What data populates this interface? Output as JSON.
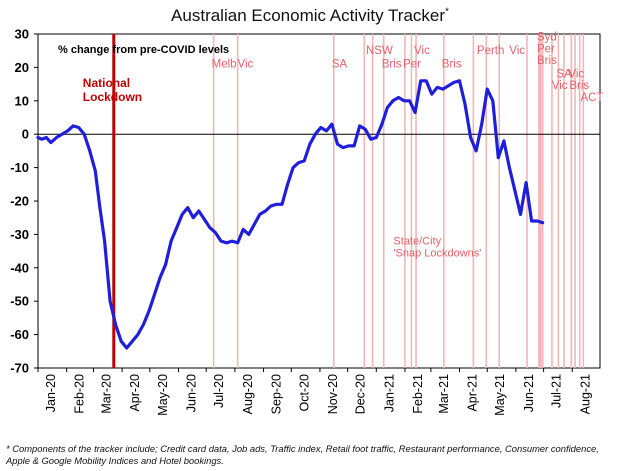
{
  "chart_data": {
    "type": "line",
    "title": "Australian Economic Activity Tracker",
    "title_marker": "*",
    "ylabel": "% change from pre-COVID levels",
    "ylim": [
      -70,
      30
    ],
    "yticks": [
      30,
      20,
      10,
      0,
      -10,
      -20,
      -30,
      -40,
      -50,
      -60,
      -70
    ],
    "xlim": [
      "2020-01-01",
      "2021-08-31"
    ],
    "xtick_labels": [
      "Jan-20",
      "Feb-20",
      "Mar-20",
      "Apr-20",
      "May-20",
      "Jun-20",
      "Jul-20",
      "Aug-20",
      "Sep-20",
      "Oct-20",
      "Nov-20",
      "Dec-20",
      "Jan-21",
      "Feb-21",
      "Mar-21",
      "Apr-21",
      "May-21",
      "Jun-21",
      "Jul-21",
      "Aug-21"
    ],
    "xtick_dates": [
      "2020-01-01",
      "2020-02-01",
      "2020-03-01",
      "2020-04-01",
      "2020-05-01",
      "2020-06-01",
      "2020-07-01",
      "2020-08-01",
      "2020-09-01",
      "2020-10-01",
      "2020-11-01",
      "2020-12-01",
      "2021-01-01",
      "2021-02-01",
      "2021-03-01",
      "2021-04-01",
      "2021-05-01",
      "2021-06-01",
      "2021-07-01",
      "2021-08-01"
    ],
    "grid": false,
    "line_color": "#1f1fdb",
    "series": [
      {
        "points": [
          [
            "2020-01-01",
            -1
          ],
          [
            "2020-01-05",
            -1.5
          ],
          [
            "2020-01-10",
            -1
          ],
          [
            "2020-01-15",
            -2.5
          ],
          [
            "2020-01-21",
            -1
          ],
          [
            "2020-01-27",
            0
          ],
          [
            "2020-02-02",
            1
          ],
          [
            "2020-02-08",
            2.5
          ],
          [
            "2020-02-14",
            2
          ],
          [
            "2020-02-20",
            0
          ],
          [
            "2020-02-26",
            -5
          ],
          [
            "2020-03-03",
            -11
          ],
          [
            "2020-03-08",
            -22
          ],
          [
            "2020-03-13",
            -32
          ],
          [
            "2020-03-19",
            -50
          ],
          [
            "2020-03-25",
            -57
          ],
          [
            "2020-03-31",
            -62
          ],
          [
            "2020-04-06",
            -64
          ],
          [
            "2020-04-12",
            -62
          ],
          [
            "2020-04-18",
            -60
          ],
          [
            "2020-04-24",
            -57
          ],
          [
            "2020-04-30",
            -53
          ],
          [
            "2020-05-06",
            -48
          ],
          [
            "2020-05-12",
            -43
          ],
          [
            "2020-05-18",
            -39
          ],
          [
            "2020-05-24",
            -32
          ],
          [
            "2020-05-30",
            -28
          ],
          [
            "2020-06-05",
            -24
          ],
          [
            "2020-06-11",
            -22
          ],
          [
            "2020-06-17",
            -25
          ],
          [
            "2020-06-23",
            -23
          ],
          [
            "2020-06-29",
            -25.5
          ],
          [
            "2020-07-05",
            -28
          ],
          [
            "2020-07-11",
            -29.5
          ],
          [
            "2020-07-17",
            -32
          ],
          [
            "2020-07-23",
            -32.5
          ],
          [
            "2020-07-29",
            -32
          ],
          [
            "2020-08-04",
            -32.5
          ],
          [
            "2020-08-10",
            -28.5
          ],
          [
            "2020-08-16",
            -30
          ],
          [
            "2020-08-22",
            -27
          ],
          [
            "2020-08-28",
            -24
          ],
          [
            "2020-09-03",
            -23
          ],
          [
            "2020-09-09",
            -21.5
          ],
          [
            "2020-09-15",
            -21
          ],
          [
            "2020-09-21",
            -21
          ],
          [
            "2020-09-27",
            -15
          ],
          [
            "2020-10-03",
            -10
          ],
          [
            "2020-10-09",
            -8.5
          ],
          [
            "2020-10-15",
            -8
          ],
          [
            "2020-10-21",
            -3
          ],
          [
            "2020-10-27",
            0
          ],
          [
            "2020-11-02",
            2
          ],
          [
            "2020-11-08",
            1
          ],
          [
            "2020-11-14",
            3
          ],
          [
            "2020-11-20",
            -3
          ],
          [
            "2020-11-26",
            -4
          ],
          [
            "2020-12-02",
            -3.5
          ],
          [
            "2020-12-08",
            -3.5
          ],
          [
            "2020-12-14",
            2.5
          ],
          [
            "2020-12-20",
            1.5
          ],
          [
            "2020-12-26",
            -1.5
          ],
          [
            "2021-01-01",
            -1
          ],
          [
            "2021-01-07",
            3
          ],
          [
            "2021-01-13",
            8
          ],
          [
            "2021-01-19",
            10
          ],
          [
            "2021-01-25",
            11
          ],
          [
            "2021-01-31",
            10
          ],
          [
            "2021-02-06",
            10
          ],
          [
            "2021-02-12",
            6.5
          ],
          [
            "2021-02-18",
            16
          ],
          [
            "2021-02-24",
            16
          ],
          [
            "2021-03-02",
            12
          ],
          [
            "2021-03-08",
            14
          ],
          [
            "2021-03-14",
            13.5
          ],
          [
            "2021-03-20",
            14.5
          ],
          [
            "2021-03-26",
            15.5
          ],
          [
            "2021-04-01",
            16
          ],
          [
            "2021-04-07",
            9
          ],
          [
            "2021-04-13",
            -1
          ],
          [
            "2021-04-19",
            -5
          ],
          [
            "2021-04-25",
            3
          ],
          [
            "2021-05-01",
            13.5
          ],
          [
            "2021-05-07",
            10
          ],
          [
            "2021-05-13",
            -7
          ],
          [
            "2021-05-19",
            -2
          ],
          [
            "2021-05-25",
            -10
          ],
          [
            "2021-05-31",
            -17
          ],
          [
            "2021-06-06",
            -24
          ],
          [
            "2021-06-12",
            -14.5
          ],
          [
            "2021-06-18",
            -26
          ],
          [
            "2021-06-24",
            -26
          ],
          [
            "2021-06-30",
            -26.5
          ]
        ]
      }
    ],
    "reference_lines": {
      "national_lockdown": {
        "date": "2020-03-23",
        "label_lines": [
          "National",
          "Lockdown"
        ],
        "color": "#c00000"
      },
      "snap_lockdown_color": "#f2b6b6",
      "snap_lockdown_dates": [
        "2020-07-09",
        "2020-08-04",
        "2020-11-16",
        "2020-12-19",
        "2020-12-28",
        "2021-01-09",
        "2021-02-01",
        "2021-02-08",
        "2021-02-13",
        "2021-03-15",
        "2021-04-16",
        "2021-04-30",
        "2021-05-14",
        "2021-06-13",
        "2021-06-26",
        "2021-06-27",
        "2021-06-28",
        "2021-06-30",
        "2021-07-10",
        "2021-07-17",
        "2021-07-23",
        "2021-07-31",
        "2021-08-04",
        "2021-08-09",
        "2021-08-13"
      ]
    },
    "annotations": [
      {
        "text": "Melb",
        "date": "2020-07-09",
        "y": 20
      },
      {
        "text": "Vic",
        "date": "2020-08-06",
        "y": 20
      },
      {
        "text": "SA",
        "date": "2020-11-16",
        "y": 20
      },
      {
        "text": "NSW",
        "date": "2020-12-23",
        "y": 24
      },
      {
        "text": "Bris",
        "date": "2021-01-09",
        "y": 20
      },
      {
        "text": "Per",
        "date": "2021-02-01",
        "y": 20
      },
      {
        "text": "Vic",
        "date": "2021-02-13",
        "y": 24
      },
      {
        "text": "Bris",
        "date": "2021-03-15",
        "y": 20
      },
      {
        "text": "Perth",
        "date": "2021-04-22",
        "y": 24
      },
      {
        "text": "Vic",
        "date": "2021-05-27",
        "y": 24
      },
      {
        "text": "Syd",
        "date": "2021-06-26",
        "y": 28
      },
      {
        "text": "Per",
        "date": "2021-06-26",
        "y": 24.5
      },
      {
        "text": "Bris",
        "date": "2021-06-26",
        "y": 21
      },
      {
        "text": "SA",
        "date": "2021-07-17",
        "y": 17
      },
      {
        "text": "Vic",
        "date": "2021-07-30",
        "y": 17
      },
      {
        "text": "Vic",
        "date": "2021-07-12",
        "y": 13.5
      },
      {
        "text": "Bris",
        "date": "2021-07-31",
        "y": 13.5
      },
      {
        "text": "ACT",
        "date": "2021-08-12",
        "y": 10
      }
    ],
    "annotation_note": {
      "lines": [
        "State/City",
        "'Snap Lockdowns'"
      ],
      "date": "2021-02-08",
      "y": -33
    }
  },
  "footnote": "* Components of the tracker include; Credit card data, Job ads, Traffic index, Retail foot traffic, Restaurant performance, Consumer confidence, Apple & Google Mobility Indices and Hotel bookings."
}
